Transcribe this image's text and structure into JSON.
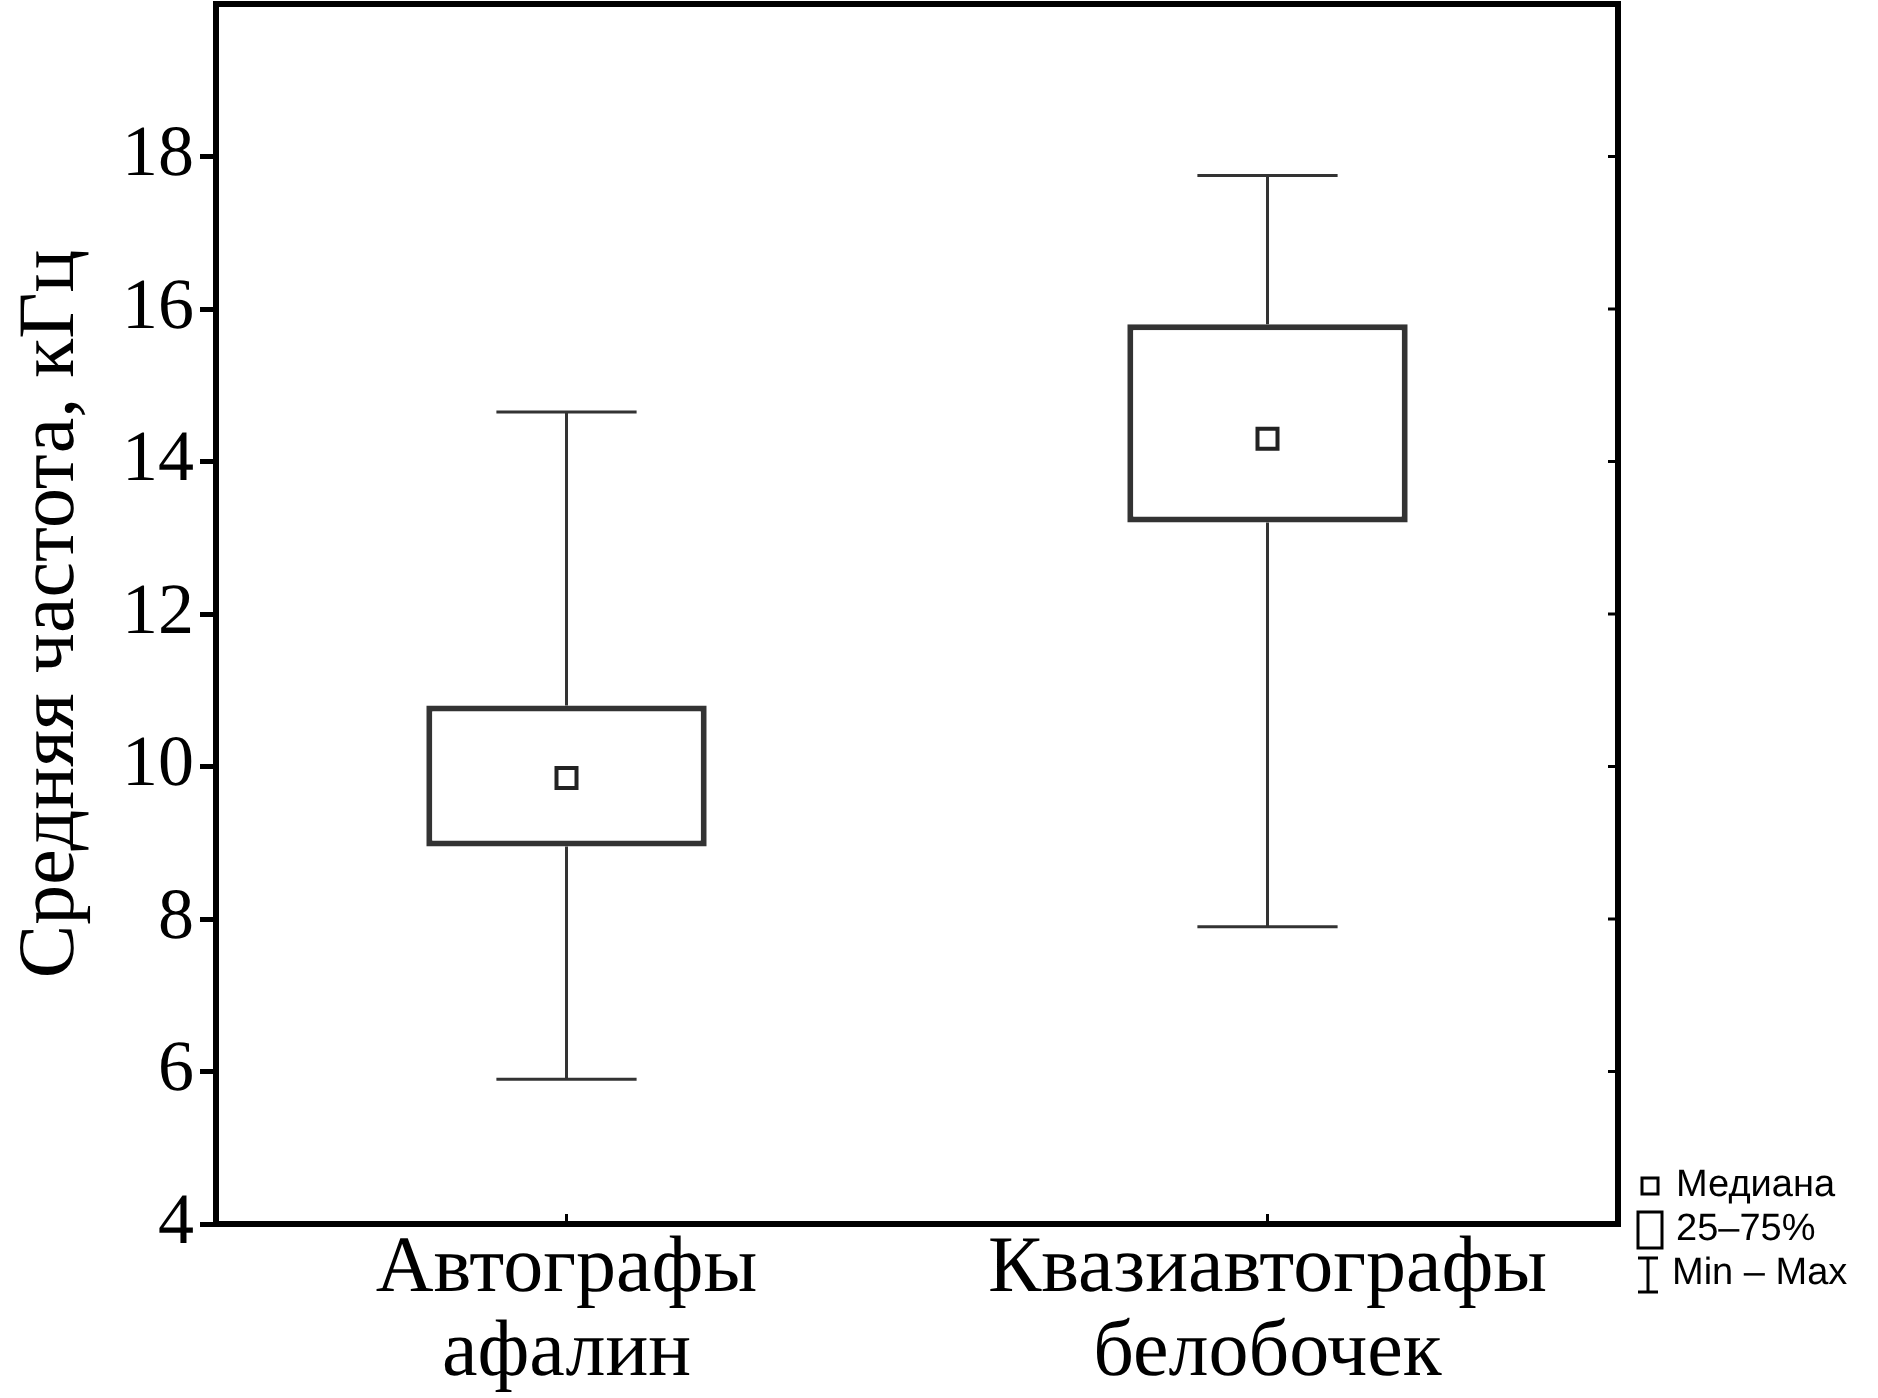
{
  "chart_data": {
    "type": "box",
    "ylabel": "Средняя частота, кГц",
    "categories": [
      "Автографы афалин",
      "Квазиавтографы белобочек"
    ],
    "boxes": [
      {
        "low": 5.9,
        "q1": 8.95,
        "median": 9.85,
        "q3": 10.8,
        "high": 14.65
      },
      {
        "low": 7.9,
        "q1": 13.2,
        "median": 14.3,
        "q3": 15.8,
        "high": 17.75
      }
    ],
    "color": "#333333",
    "ylim": [
      4,
      20
    ],
    "yticks": [
      4,
      6,
      8,
      10,
      12,
      14,
      16,
      18
    ],
    "marker": "square",
    "annotations": [
      "Медиана",
      "25–75%",
      "Min – Max"
    ]
  }
}
